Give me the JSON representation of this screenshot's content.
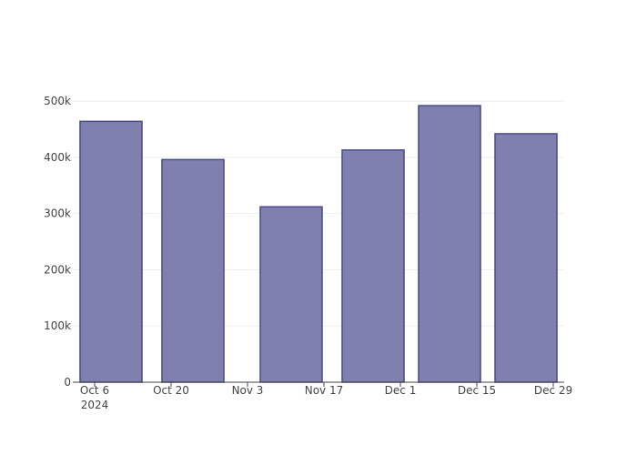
{
  "chart_data": {
    "type": "bar",
    "x": [
      "2024-10-09",
      "2024-10-24",
      "2024-11-11",
      "2024-11-26",
      "2024-12-10",
      "2024-12-24"
    ],
    "values": [
      464000,
      396000,
      312000,
      413000,
      492000,
      442000
    ],
    "color": "#7f7fb0",
    "edgecolor": "#4b4b8a",
    "xlim": [
      "2024-10-02",
      "2024-12-31"
    ],
    "xticks": [
      {
        "value": "2024-10-06",
        "label": "Oct 6\n2024"
      },
      {
        "value": "2024-10-20",
        "label": "Oct 20"
      },
      {
        "value": "2024-11-03",
        "label": "Nov 3"
      },
      {
        "value": "2024-11-17",
        "label": "Nov 17"
      },
      {
        "value": "2024-12-01",
        "label": "Dec 1"
      },
      {
        "value": "2024-12-15",
        "label": "Dec 15"
      },
      {
        "value": "2024-12-29",
        "label": "Dec 29"
      }
    ],
    "ylim": [
      0,
      518000
    ],
    "yticks": [
      0,
      {
        "value": 100000,
        "label": "100k"
      },
      {
        "value": 200000,
        "label": "200k"
      },
      {
        "value": 300000,
        "label": "300k"
      },
      {
        "value": 400000,
        "label": "400k"
      },
      {
        "value": 500000,
        "label": "500k"
      }
    ],
    "grid": true
  }
}
